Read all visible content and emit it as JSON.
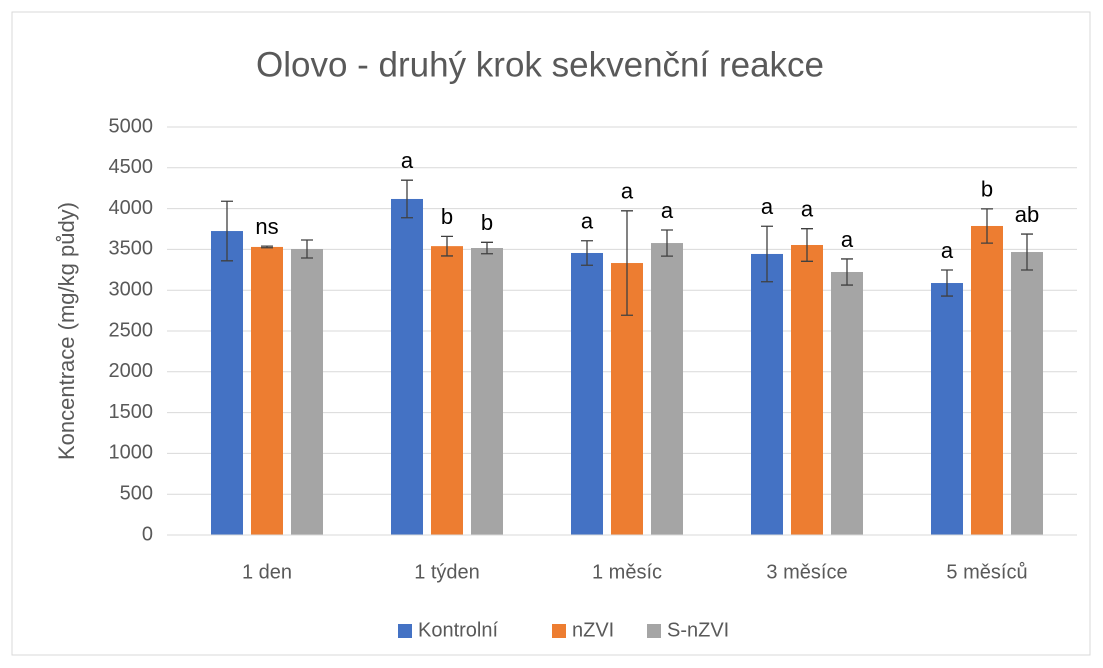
{
  "chart_data": {
    "type": "bar",
    "title": "Olovo - druhý krok sekvenční reakce",
    "y_label": "Koncentrace (mg/kg půdy)",
    "categories": [
      "1 den",
      "1 týden",
      "1 měsíc",
      "3 měsíce",
      "5 měsíců"
    ],
    "series": [
      {
        "name": "Kontrolní",
        "color": "#4472c4",
        "values": [
          3725,
          4118,
          3456,
          3444,
          3088
        ],
        "errors": [
          365,
          230,
          150,
          340,
          160
        ],
        "labels": [
          null,
          "a",
          "a",
          "a",
          "a"
        ]
      },
      {
        "name": "nZVI",
        "color": "#ed7d31",
        "values": [
          3530,
          3540,
          3333,
          3554,
          3787
        ],
        "errors": [
          10,
          120,
          640,
          200,
          210
        ],
        "labels": [
          "ns",
          "b",
          "a",
          "a",
          "b"
        ]
      },
      {
        "name": "S-nZVI",
        "color": "#a5a5a5",
        "values": [
          3505,
          3517,
          3578,
          3223,
          3468
        ],
        "errors": [
          110,
          70,
          160,
          160,
          220
        ],
        "labels": [
          null,
          "b",
          "a",
          "a",
          "ab"
        ]
      }
    ],
    "ylim": [
      0,
      5000
    ],
    "yticks": [
      0,
      500,
      1000,
      1500,
      2000,
      2500,
      3000,
      3500,
      4000,
      4500,
      5000
    ],
    "grid": true,
    "legend": "bottom"
  }
}
